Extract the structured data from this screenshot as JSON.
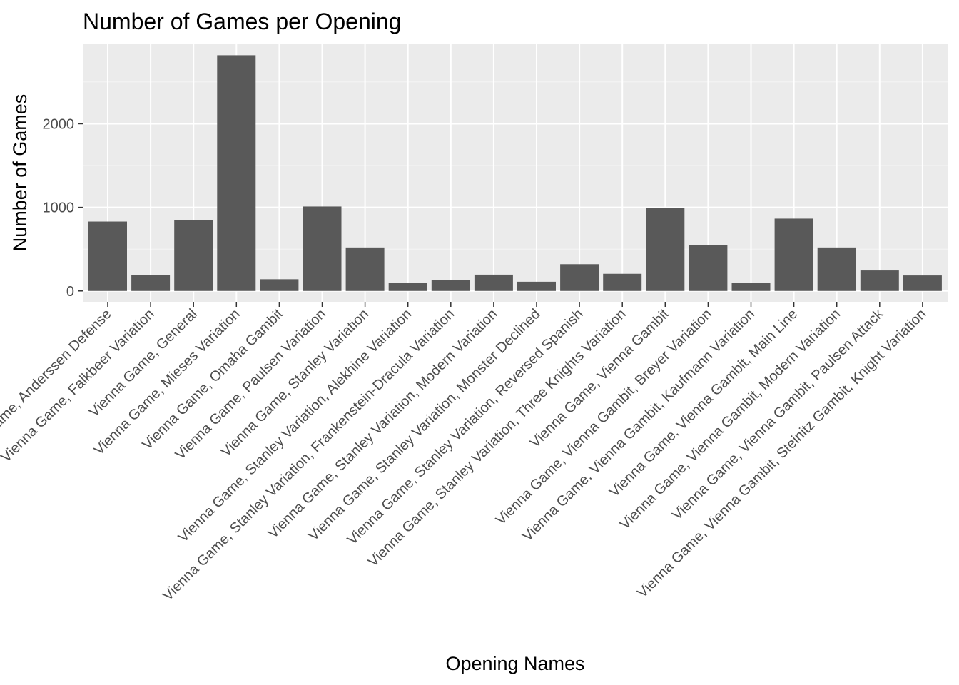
{
  "chart_data": {
    "type": "bar",
    "title": "Number of Games per Opening",
    "xlabel": "Opening Names",
    "ylabel": "Number of Games",
    "categories": [
      "Vienna Game, Anderssen Defense",
      "Vienna Game, Falkbeer Variation",
      "Vienna Game, General",
      "Vienna Game, Mieses Variation",
      "Vienna Game, Omaha Gambit",
      "Vienna Game, Paulsen Variation",
      "Vienna Game, Stanley Variation",
      "Vienna Game, Stanley Variation, Alekhine Variation",
      "Vienna Game, Stanley Variation, Frankenstein-Dracula Variation",
      "Vienna Game, Stanley Variation, Modern Variation",
      "Vienna Game, Stanley Variation, Monster Declined",
      "Vienna Game, Stanley Variation, Reversed Spanish",
      "Vienna Game, Stanley Variation, Three Knights Variation",
      "Vienna Game, Vienna Gambit",
      "Vienna Game, Vienna Gambit, Breyer Variation",
      "Vienna Game, Vienna Gambit, Kaufmann Variation",
      "Vienna Game, Vienna Gambit, Main Line",
      "Vienna Game, Vienna Gambit, Modern Variation",
      "Vienna Game, Vienna Gambit, Paulsen Attack",
      "Vienna Game, Vienna Gambit, Steinitz Gambit, Knight Variation"
    ],
    "values": [
      830,
      190,
      850,
      2820,
      140,
      1010,
      520,
      100,
      130,
      195,
      110,
      320,
      205,
      995,
      545,
      100,
      865,
      520,
      245,
      185
    ],
    "ylim": [
      -130,
      2960
    ],
    "yticks": [
      0,
      1000,
      2000
    ],
    "ytick_labels": [
      "0",
      "1000",
      "2000"
    ],
    "grid": true,
    "legend": "none",
    "colors": {
      "bar": "#595959",
      "panel_background": "#ebebeb",
      "grid_major": "#ffffff",
      "grid_minor": "#f5f5f5",
      "tick": "#333333",
      "tick_label": "#4d4d4d",
      "text": "#000000"
    }
  }
}
